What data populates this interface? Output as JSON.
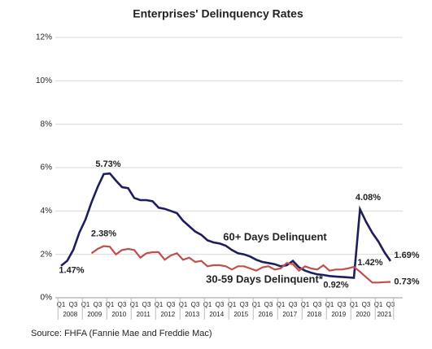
{
  "chart_data": {
    "type": "line",
    "title": "Enterprises' Delinquency Rates",
    "categories": [
      "Q1",
      null,
      "Q3",
      null,
      "Q1",
      null,
      "Q3",
      null,
      "Q1",
      null,
      "Q3",
      null,
      "Q1",
      null,
      "Q3",
      null,
      "Q1",
      null,
      "Q3",
      null,
      "Q1",
      null,
      "Q3",
      null,
      "Q1",
      null,
      "Q3",
      null,
      "Q1",
      null,
      "Q3",
      null,
      "Q1",
      null,
      "Q3",
      null,
      "Q1",
      null,
      "Q3",
      null,
      "Q1",
      null,
      "Q3",
      null,
      "Q1",
      null,
      "Q3",
      null,
      "Q1",
      null,
      "Q3",
      null,
      "Q1",
      null,
      "Q3"
    ],
    "years": [
      "2008",
      "2009",
      "2010",
      "2011",
      "2012",
      "2013",
      "2014",
      "2015",
      "2016",
      "2017",
      "2018",
      "2019",
      "2020",
      "2021"
    ],
    "series": [
      {
        "name": "60+ Days Delinquent",
        "color": "#1e1e5c",
        "values": [
          1.47,
          1.7,
          2.2,
          3.0,
          3.6,
          4.4,
          5.1,
          5.7,
          5.73,
          5.4,
          5.1,
          5.05,
          4.6,
          4.5,
          4.5,
          4.45,
          4.15,
          4.1,
          4.0,
          3.9,
          3.55,
          3.3,
          3.05,
          2.9,
          2.65,
          2.55,
          2.5,
          2.4,
          2.2,
          2.05,
          2.0,
          1.9,
          1.75,
          1.65,
          1.6,
          1.55,
          1.45,
          1.5,
          1.7,
          1.4,
          1.25,
          1.15,
          1.08,
          1.05,
          1.0,
          0.98,
          0.96,
          0.94,
          0.92,
          4.08,
          3.5,
          3.0,
          2.6,
          2.1,
          1.69
        ],
        "value_labels": [
          "1.47%",
          null,
          null,
          null,
          null,
          null,
          null,
          null,
          "5.73%",
          null,
          null,
          null,
          null,
          null,
          null,
          null,
          null,
          null,
          null,
          null,
          null,
          null,
          null,
          null,
          null,
          null,
          null,
          null,
          null,
          null,
          null,
          null,
          null,
          null,
          null,
          null,
          null,
          null,
          null,
          null,
          null,
          null,
          null,
          null,
          null,
          null,
          null,
          null,
          "0.92%",
          "4.08%",
          null,
          null,
          null,
          null,
          "1.69%"
        ]
      },
      {
        "name": "30-59 Days Delinquent*",
        "color": "#c0504d",
        "values": [
          null,
          null,
          null,
          null,
          null,
          2.05,
          2.25,
          2.38,
          2.35,
          2.0,
          2.2,
          2.25,
          2.2,
          1.85,
          2.05,
          2.1,
          2.1,
          1.75,
          1.95,
          2.05,
          1.75,
          1.85,
          1.65,
          1.7,
          1.45,
          1.5,
          1.5,
          1.45,
          1.3,
          1.45,
          1.45,
          1.35,
          1.25,
          1.4,
          1.45,
          1.3,
          1.35,
          1.6,
          1.55,
          1.25,
          1.45,
          1.35,
          1.3,
          1.5,
          1.25,
          1.3,
          1.3,
          1.35,
          1.42,
          1.2,
          0.95,
          0.7,
          0.7,
          0.72,
          0.73
        ],
        "value_labels": [
          null,
          null,
          null,
          null,
          null,
          null,
          null,
          "2.38%",
          null,
          null,
          null,
          null,
          null,
          null,
          null,
          null,
          null,
          null,
          null,
          null,
          null,
          null,
          null,
          null,
          null,
          null,
          null,
          null,
          null,
          null,
          null,
          null,
          null,
          null,
          null,
          null,
          null,
          null,
          null,
          null,
          null,
          null,
          null,
          null,
          null,
          null,
          null,
          null,
          "1.42%",
          null,
          null,
          null,
          null,
          null,
          "0.73%"
        ]
      }
    ],
    "ylim": [
      0,
      12
    ],
    "yticks": [
      {
        "value": 0,
        "label": "0%"
      },
      {
        "value": 2,
        "label": "2%"
      },
      {
        "value": 4,
        "label": "4%"
      },
      {
        "value": 6,
        "label": "6%"
      },
      {
        "value": 8,
        "label": "8%"
      },
      {
        "value": 10,
        "label": "10%"
      },
      {
        "value": 12,
        "label": "12%"
      }
    ],
    "grid": true,
    "source": "Source: FHFA (Fannie Mae and Freddie Mac)"
  }
}
